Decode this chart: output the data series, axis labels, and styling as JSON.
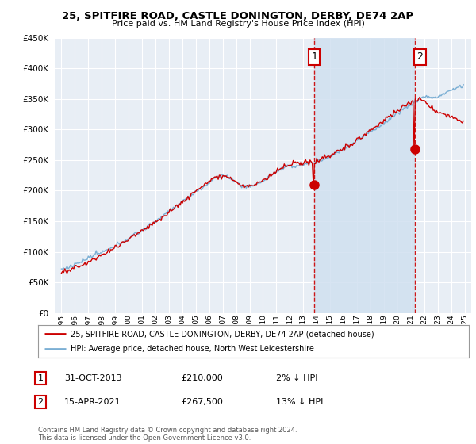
{
  "title_line1": "25, SPITFIRE ROAD, CASTLE DONINGTON, DERBY, DE74 2AP",
  "title_line2": "Price paid vs. HM Land Registry's House Price Index (HPI)",
  "background_color": "#ffffff",
  "plot_bg_color": "#e8eef5",
  "grid_color": "#ffffff",
  "shade_color": "#d0e0f0",
  "hpi_color": "#7bafd4",
  "price_color": "#cc0000",
  "sale1_date_x": 2013.83,
  "sale1_price": 210000,
  "sale2_date_x": 2021.29,
  "sale2_price": 267500,
  "ylim_min": 0,
  "ylim_max": 450000,
  "xlim_min": 1994.5,
  "xlim_max": 2025.5,
  "legend_label1": "25, SPITFIRE ROAD, CASTLE DONINGTON, DERBY, DE74 2AP (detached house)",
  "legend_label2": "HPI: Average price, detached house, North West Leicestershire",
  "note1_num": "1",
  "note1_date": "31-OCT-2013",
  "note1_price": "£210,000",
  "note1_hpi": "2% ↓ HPI",
  "note2_num": "2",
  "note2_date": "15-APR-2021",
  "note2_price": "£267,500",
  "note2_hpi": "13% ↓ HPI",
  "footer": "Contains HM Land Registry data © Crown copyright and database right 2024.\nThis data is licensed under the Open Government Licence v3.0."
}
